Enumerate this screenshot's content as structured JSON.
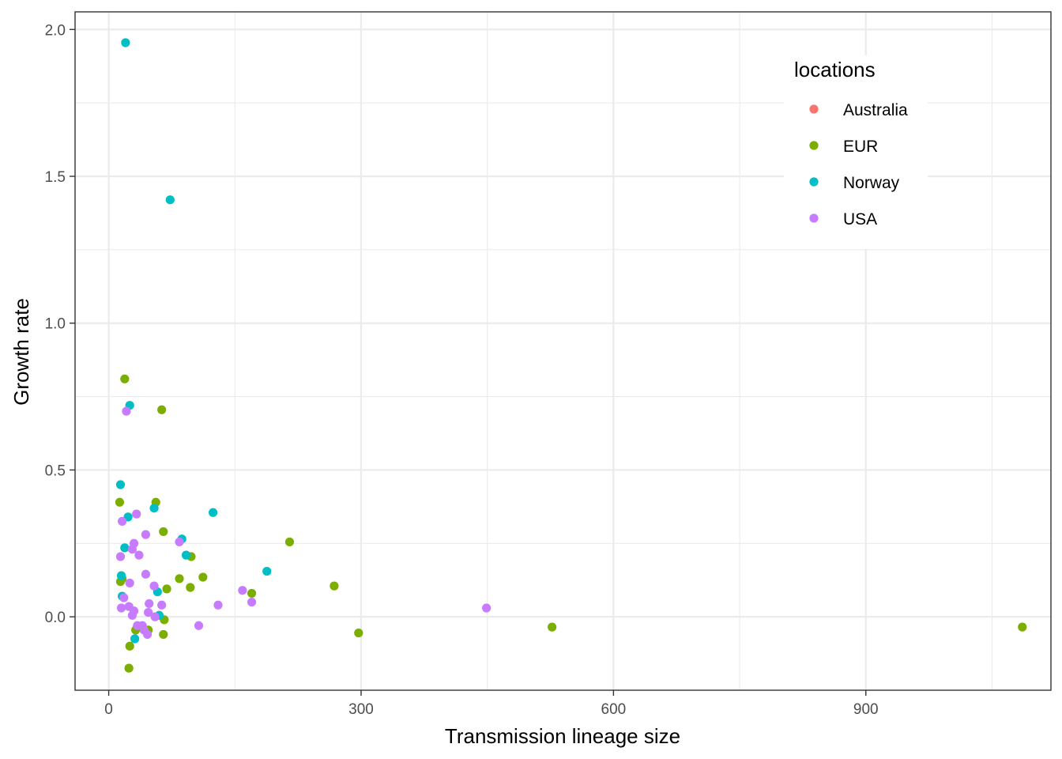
{
  "chart_data": {
    "type": "scatter",
    "title": "",
    "xlabel": "Transmission lineage size",
    "ylabel": "Growth rate",
    "xlim": [
      -40,
      1120
    ],
    "ylim": [
      -0.25,
      2.06
    ],
    "x_ticks": [
      0,
      300,
      600,
      900
    ],
    "x_tick_labels": [
      "0",
      "300",
      "600",
      "900"
    ],
    "y_ticks": [
      0.0,
      0.5,
      1.0,
      1.5,
      2.0
    ],
    "y_tick_labels": [
      "0.0",
      "0.5",
      "1.0",
      "1.5",
      "2.0"
    ],
    "grid": true,
    "legend": {
      "title": "locations",
      "placement": "top-right",
      "entries": [
        "Australia",
        "EUR",
        "Norway",
        "USA"
      ]
    },
    "colors": {
      "Australia": "#F8766D",
      "EUR": "#7CAE00",
      "Norway": "#00BFC4",
      "USA": "#C77CFF"
    },
    "series": [
      {
        "name": "Australia",
        "points": []
      },
      {
        "name": "EUR",
        "points": [
          [
            19,
            0.81
          ],
          [
            63,
            0.705
          ],
          [
            13,
            0.39
          ],
          [
            56,
            0.39
          ],
          [
            65,
            0.29
          ],
          [
            14,
            0.12
          ],
          [
            16,
            0.13
          ],
          [
            69,
            0.095
          ],
          [
            84,
            0.13
          ],
          [
            98,
            0.205
          ],
          [
            97,
            0.1
          ],
          [
            112,
            0.135
          ],
          [
            170,
            0.08
          ],
          [
            215,
            0.255
          ],
          [
            268,
            0.105
          ],
          [
            297,
            -0.055
          ],
          [
            527,
            -0.035
          ],
          [
            1086,
            -0.035
          ],
          [
            66,
            -0.01
          ],
          [
            65,
            -0.06
          ],
          [
            47,
            -0.045
          ],
          [
            32,
            -0.045
          ],
          [
            25,
            -0.1
          ],
          [
            24,
            -0.175
          ]
        ]
      },
      {
        "name": "Norway",
        "points": [
          [
            20,
            1.955
          ],
          [
            73,
            1.42
          ],
          [
            25,
            0.72
          ],
          [
            14,
            0.45
          ],
          [
            23,
            0.34
          ],
          [
            54,
            0.37
          ],
          [
            124,
            0.355
          ],
          [
            19,
            0.235
          ],
          [
            87,
            0.265
          ],
          [
            92,
            0.21
          ],
          [
            15,
            0.14
          ],
          [
            16,
            0.07
          ],
          [
            58,
            0.085
          ],
          [
            60,
            0.005
          ],
          [
            31,
            -0.075
          ],
          [
            188,
            0.155
          ]
        ]
      },
      {
        "name": "USA",
        "points": [
          [
            21,
            0.7
          ],
          [
            16,
            0.325
          ],
          [
            33,
            0.35
          ],
          [
            44,
            0.28
          ],
          [
            30,
            0.25
          ],
          [
            28,
            0.23
          ],
          [
            36,
            0.21
          ],
          [
            14,
            0.205
          ],
          [
            84,
            0.255
          ],
          [
            44,
            0.145
          ],
          [
            25,
            0.115
          ],
          [
            54,
            0.105
          ],
          [
            159,
            0.09
          ],
          [
            170,
            0.05
          ],
          [
            130,
            0.04
          ],
          [
            18,
            0.065
          ],
          [
            15,
            0.03
          ],
          [
            24,
            0.035
          ],
          [
            30,
            0.02
          ],
          [
            28,
            0.005
          ],
          [
            48,
            0.045
          ],
          [
            63,
            0.04
          ],
          [
            47,
            0.015
          ],
          [
            55,
            0.0
          ],
          [
            34,
            -0.03
          ],
          [
            40,
            -0.03
          ],
          [
            42,
            -0.045
          ],
          [
            46,
            -0.06
          ],
          [
            107,
            -0.03
          ],
          [
            449,
            0.03
          ]
        ]
      }
    ]
  }
}
